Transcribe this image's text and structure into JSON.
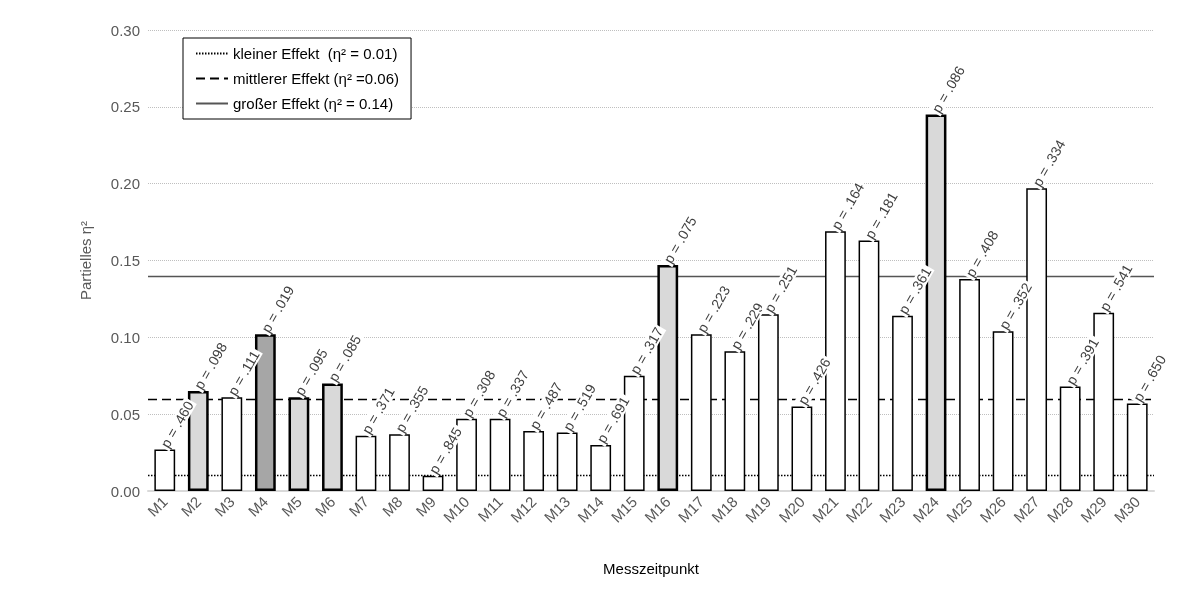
{
  "chart_data": {
    "type": "bar",
    "xlabel": "Messzeitpunkt",
    "ylabel": "Partielles η²",
    "categories": [
      "M1",
      "M2",
      "M3",
      "M4",
      "M5",
      "M6",
      "M7",
      "M8",
      "M9",
      "M10",
      "M11",
      "M12",
      "M13",
      "M14",
      "M15",
      "M16",
      "M17",
      "M18",
      "M19",
      "M20",
      "M21",
      "M22",
      "M23",
      "M24",
      "M25",
      "M26",
      "M27",
      "M28",
      "M29",
      "M30"
    ],
    "values": [
      0.027,
      0.065,
      0.061,
      0.102,
      0.061,
      0.07,
      0.036,
      0.037,
      0.01,
      0.047,
      0.047,
      0.039,
      0.038,
      0.03,
      0.075,
      0.147,
      0.102,
      0.091,
      0.115,
      0.055,
      0.169,
      0.163,
      0.114,
      0.245,
      0.138,
      0.104,
      0.197,
      0.068,
      0.116,
      0.057
    ],
    "colors": [
      "#ffffff",
      "#d9d9d9",
      "#ffffff",
      "#a6a6a6",
      "#d9d9d9",
      "#d9d9d9",
      "#ffffff",
      "#ffffff",
      "#ffffff",
      "#ffffff",
      "#ffffff",
      "#ffffff",
      "#ffffff",
      "#ffffff",
      "#ffffff",
      "#d9d9d9",
      "#ffffff",
      "#ffffff",
      "#ffffff",
      "#ffffff",
      "#ffffff",
      "#ffffff",
      "#ffffff",
      "#d9d9d9",
      "#ffffff",
      "#ffffff",
      "#ffffff",
      "#ffffff",
      "#ffffff",
      "#ffffff"
    ],
    "annotations": [
      {
        "text": "p = .460",
        "x": "M1",
        "y": 0.027
      },
      {
        "text": "p = .098",
        "x": "M2",
        "y": 0.065
      },
      {
        "text": "p = .111",
        "x": "M3",
        "y": 0.061
      },
      {
        "text": "p = .019",
        "x": "M4",
        "y": 0.102
      },
      {
        "text": "p = .095",
        "x": "M5",
        "y": 0.061
      },
      {
        "text": "p = .085",
        "x": "M6",
        "y": 0.07
      },
      {
        "text": "p = .371",
        "x": "M7",
        "y": 0.036
      },
      {
        "text": "p = .355",
        "x": "M8",
        "y": 0.037
      },
      {
        "text": "p = .845",
        "x": "M9",
        "y": 0.01
      },
      {
        "text": "p = .308",
        "x": "M10",
        "y": 0.047
      },
      {
        "text": "p = .337",
        "x": "M11",
        "y": 0.047
      },
      {
        "text": "p = .487",
        "x": "M12",
        "y": 0.039
      },
      {
        "text": "p = .519",
        "x": "M13",
        "y": 0.038
      },
      {
        "text": "p = .691",
        "x": "M14",
        "y": 0.03
      },
      {
        "text": "p = .317",
        "x": "M15",
        "y": 0.075
      },
      {
        "text": "p = .075",
        "x": "M16",
        "y": 0.147
      },
      {
        "text": "p = .223",
        "x": "M17",
        "y": 0.102
      },
      {
        "text": "p = .229",
        "x": "M18",
        "y": 0.091
      },
      {
        "text": "p = .251",
        "x": "M19",
        "y": 0.115
      },
      {
        "text": "p = .426",
        "x": "M20",
        "y": 0.055
      },
      {
        "text": "p = .164",
        "x": "M21",
        "y": 0.169
      },
      {
        "text": "p = .181",
        "x": "M22",
        "y": 0.163
      },
      {
        "text": "p = .361",
        "x": "M23",
        "y": 0.114
      },
      {
        "text": "p = .086",
        "x": "M24",
        "y": 0.245
      },
      {
        "text": "p = .408",
        "x": "M25",
        "y": 0.138
      },
      {
        "text": "p = .352",
        "x": "M26",
        "y": 0.104
      },
      {
        "text": "p = .334",
        "x": "M27",
        "y": 0.197
      },
      {
        "text": "p = .391",
        "x": "M28",
        "y": 0.068
      },
      {
        "text": "p = .541",
        "x": "M29",
        "y": 0.116
      },
      {
        "text": "p = .650",
        "x": "M30",
        "y": 0.057
      }
    ],
    "ylim": [
      0,
      0.3
    ],
    "yticks": [
      {
        "value": 0,
        "label": "0.00"
      },
      {
        "value": 0.05,
        "label": "0.05"
      },
      {
        "value": 0.1,
        "label": "0.10"
      },
      {
        "value": 0.15,
        "label": "0.15"
      },
      {
        "value": 0.2,
        "label": "0.20"
      },
      {
        "value": 0.25,
        "label": "0.25"
      },
      {
        "value": 0.3,
        "label": "0.30"
      }
    ],
    "grid": "y",
    "legend": "top left",
    "ref_lines": [
      {
        "axis": "y",
        "value": 0.01,
        "label": "kleiner Effekt  (η² = 0.01)",
        "line_style": "dotted",
        "color": "#000000"
      },
      {
        "axis": "y",
        "value": 0.06,
        "label": "mittlerer Effekt (η² =0.06)",
        "line_style": "dashed",
        "color": "#000000"
      },
      {
        "axis": "y",
        "value": 0.14,
        "label": "großer Effekt (η² = 0.14)",
        "line_style": "solid",
        "color": "#555555"
      }
    ]
  }
}
